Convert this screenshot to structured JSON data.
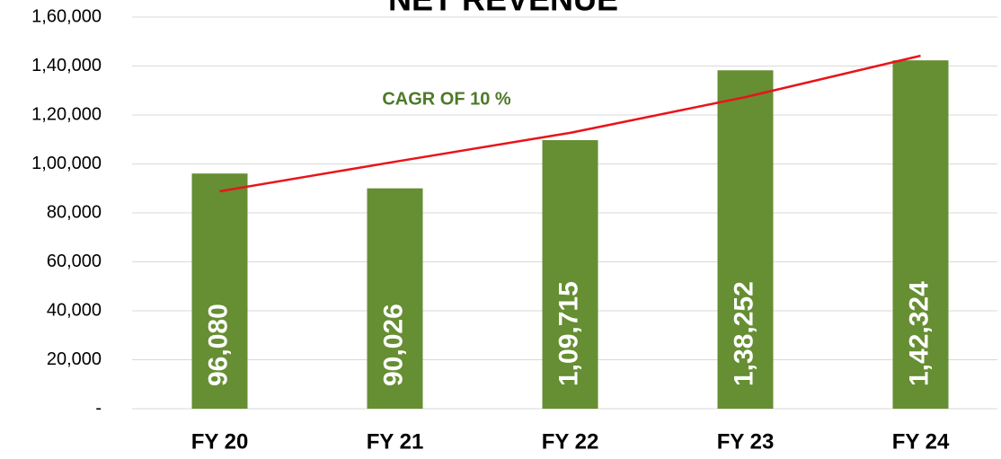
{
  "chart_data": {
    "type": "bar",
    "title": "NET REVENUE",
    "annotation": "CAGR OF 10 %",
    "categories": [
      "FY 20",
      "FY 21",
      "FY 22",
      "FY 23",
      "FY 24"
    ],
    "values": [
      96080,
      90026,
      109715,
      138252,
      142324
    ],
    "value_labels": [
      "96,080",
      "90,026",
      "1,09,715",
      "1,38,252",
      "1,42,324"
    ],
    "color": "#668e32",
    "trend": {
      "color": "#e8141a",
      "values": [
        88800,
        100900,
        112700,
        127300,
        144200
      ]
    },
    "ylim": [
      0,
      160000
    ],
    "yticks": [
      {
        "value": 0,
        "label": "-"
      },
      {
        "value": 20000,
        "label": "20,000"
      },
      {
        "value": 40000,
        "label": "40,000"
      },
      {
        "value": 60000,
        "label": "60,000"
      },
      {
        "value": 80000,
        "label": "80,000"
      },
      {
        "value": 100000,
        "label": "1,00,000"
      },
      {
        "value": 120000,
        "label": "1,20,000"
      },
      {
        "value": 140000,
        "label": "1,40,000"
      },
      {
        "value": 160000,
        "label": "1,60,000"
      }
    ],
    "grid": true
  }
}
